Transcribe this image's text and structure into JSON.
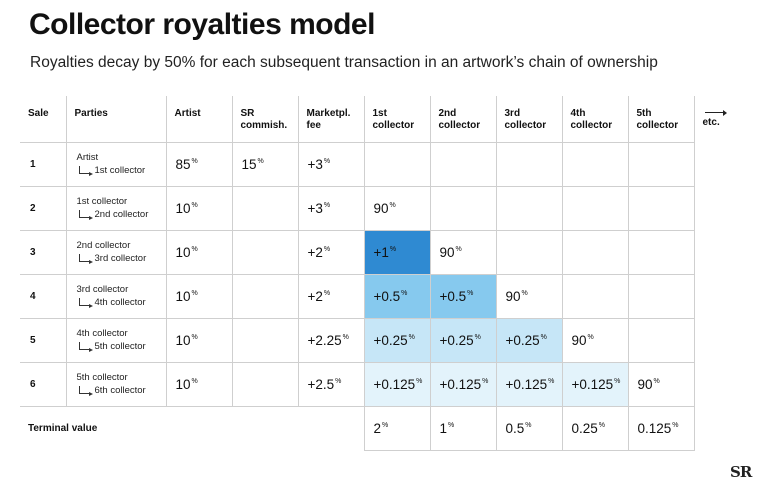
{
  "title": "Collector royalties model",
  "subtitle": "Royalties decay by 50% for each subsequent transaction in an artwork’s chain of ownership",
  "logo": "SR",
  "headers": {
    "sale": "Sale",
    "parties": "Parties",
    "artist": "Artist",
    "sr": "SR commish.",
    "market": "Marketpl. fee",
    "c1": "1st collector",
    "c2": "2nd collector",
    "c3": "3rd collector",
    "c4": "4th collector",
    "c5": "5th collector",
    "etc": "etc."
  },
  "rows": [
    {
      "sale": "1",
      "from": "Artist",
      "to": "1st collector",
      "artist": "85",
      "sr": "15",
      "market": "+3",
      "c1": "",
      "c2": "",
      "c3": "",
      "c4": "",
      "c5": ""
    },
    {
      "sale": "2",
      "from": "1st collector",
      "to": "2nd collector",
      "artist": "10",
      "sr": "",
      "market": "+3",
      "c1": "90",
      "c2": "",
      "c3": "",
      "c4": "",
      "c5": ""
    },
    {
      "sale": "3",
      "from": "2nd collector",
      "to": "3rd collector",
      "artist": "10",
      "sr": "",
      "market": "+2",
      "c1": "+1",
      "c2": "90",
      "c3": "",
      "c4": "",
      "c5": ""
    },
    {
      "sale": "4",
      "from": "3rd collector",
      "to": "4th collector",
      "artist": "10",
      "sr": "",
      "market": "+2",
      "c1": "+0.5",
      "c2": "+0.5",
      "c3": "90",
      "c4": "",
      "c5": ""
    },
    {
      "sale": "5",
      "from": "4th collector",
      "to": "5th collector",
      "artist": "10",
      "sr": "",
      "market": "+2.25",
      "c1": "+0.25",
      "c2": "+0.25",
      "c3": "+0.25",
      "c4": "90",
      "c5": ""
    },
    {
      "sale": "6",
      "from": "5th collector",
      "to": "6th collector",
      "artist": "10",
      "sr": "",
      "market": "+2.5",
      "c1": "+0.125",
      "c2": "+0.125",
      "c3": "+0.125",
      "c4": "+0.125",
      "c5": "90"
    }
  ],
  "terminal": {
    "label": "Terminal value",
    "c1": "2",
    "c2": "1",
    "c3": "0.5",
    "c4": "0.25",
    "c5": "0.125"
  },
  "colors": {
    "dark": "#2f8ad2",
    "mid": "#86c9ee",
    "light": "#c6e6f7",
    "pale": "#e3f3fb"
  }
}
